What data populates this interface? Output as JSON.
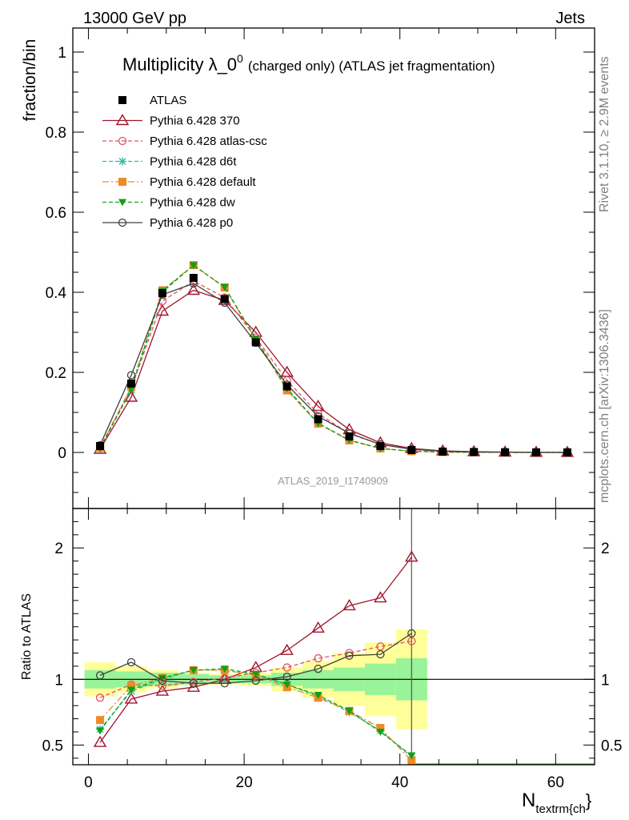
{
  "header": {
    "left": "13000 GeV pp",
    "right": "Jets"
  },
  "side_labels": {
    "rivet": "Rivet 3.1.10, ≥ 2.9M events",
    "mcplots": "mcplots.cern.ch [arXiv:1306.3436]"
  },
  "watermark": "ATLAS_2019_I1740909",
  "chart_data": [
    {
      "type": "line",
      "title": "Multiplicity λ_0",
      "title_sup": "0",
      "title_suffix": "(charged only) (ATLAS jet fragmentation)",
      "ylabel": "fraction/bin",
      "xlabel": "N",
      "xlabel_sub": "textrm{ch",
      "xlabel_suffix": "}",
      "xlim": [
        -2,
        65
      ],
      "ylim": [
        -0.14,
        1.06
      ],
      "yticks": [
        0,
        0.2,
        0.4,
        0.6,
        0.8,
        1
      ],
      "ytick_labels": [
        "0",
        "0.2",
        "0.4",
        "0.6",
        "0.8",
        "1"
      ],
      "x": [
        1.5,
        5.5,
        9.5,
        13.5,
        17.5,
        21.5,
        25.5,
        29.5,
        33.5,
        37.5,
        41.5,
        45.5,
        49.5,
        53.5,
        57.5,
        61.5
      ],
      "legend": "top-left",
      "series": [
        {
          "name": "ATLAS",
          "color": "#000000",
          "marker": "square",
          "values": [
            0.016,
            0.172,
            0.398,
            0.436,
            0.383,
            0.275,
            0.165,
            0.083,
            0.04,
            0.016,
            0.006,
            0.002,
            0.001,
            0.0005,
            0.0002,
            0.0001
          ]
        },
        {
          "name": "Pythia 6.428 370",
          "color": "#a0142e",
          "marker": "triangle-open",
          "values": [
            0.008,
            0.138,
            0.353,
            0.405,
            0.38,
            0.3,
            0.2,
            0.115,
            0.057,
            0.024,
            0.01,
            0.004,
            0.002,
            0.001,
            0.0005,
            0.0002
          ]
        },
        {
          "name": "Pythia 6.428 atlas-csc",
          "color": "#e8505e",
          "marker": "circle-open",
          "values": [
            0.013,
            0.16,
            0.378,
            0.428,
            0.387,
            0.287,
            0.18,
            0.097,
            0.047,
            0.02,
            0.008,
            0.003,
            0.001,
            0.0005,
            0.0002,
            0.0001
          ]
        },
        {
          "name": "Pythia 6.428 d6t",
          "color": "#20c0a0",
          "marker": "star",
          "values": [
            0.01,
            0.156,
            0.4,
            0.468,
            0.412,
            0.282,
            0.157,
            0.072,
            0.03,
            0.01,
            0.003,
            0.001,
            0.0004,
            0.0002,
            0.0001,
            0.0
          ]
        },
        {
          "name": "Pythia 6.428 default",
          "color": "#f08a24",
          "marker": "square",
          "values": [
            0.011,
            0.164,
            0.405,
            0.468,
            0.412,
            0.282,
            0.155,
            0.072,
            0.03,
            0.01,
            0.003,
            0.001,
            0.0004,
            0.0002,
            0.0001,
            0.0
          ]
        },
        {
          "name": "Pythia 6.428 dw",
          "color": "#12a012",
          "marker": "triangle-down",
          "values": [
            0.01,
            0.158,
            0.403,
            0.467,
            0.413,
            0.284,
            0.16,
            0.073,
            0.031,
            0.01,
            0.003,
            0.001,
            0.0004,
            0.0002,
            0.0001,
            0.0
          ]
        },
        {
          "name": "Pythia 6.428 p0",
          "color": "#404040",
          "marker": "circle-open",
          "values": [
            0.018,
            0.193,
            0.394,
            0.422,
            0.374,
            0.274,
            0.169,
            0.09,
            0.048,
            0.02,
            0.008,
            0.003,
            0.001,
            0.0005,
            0.0002,
            0.0001
          ]
        }
      ]
    },
    {
      "type": "line",
      "ylabel": "Ratio to ATLAS",
      "xlim": [
        -2,
        65
      ],
      "ylim": [
        0.35,
        2.3
      ],
      "yticks": [
        0.5,
        1,
        2
      ],
      "ytick_labels": [
        "0.5",
        "1",
        "2"
      ],
      "xticks": [
        0,
        20,
        40,
        60
      ],
      "xtick_labels": [
        "0",
        "20",
        "40",
        "60"
      ],
      "x": [
        1.5,
        5.5,
        9.5,
        13.5,
        17.5,
        21.5,
        25.5,
        29.5,
        33.5,
        37.5,
        41.5
      ],
      "bands": {
        "bin_edges": [
          -0.5,
          3.5,
          7.5,
          11.5,
          15.5,
          19.5,
          23.5,
          27.5,
          31.5,
          35.5,
          39.5,
          43.5
        ],
        "inner_color": "#99f399",
        "outer_color": "#ffff99",
        "inner_lo": [
          0.93,
          0.94,
          0.95,
          0.96,
          0.97,
          0.97,
          0.95,
          0.93,
          0.91,
          0.88,
          0.84
        ],
        "inner_hi": [
          1.07,
          1.06,
          1.05,
          1.04,
          1.03,
          1.03,
          1.05,
          1.07,
          1.09,
          1.12,
          1.16
        ],
        "outer_lo": [
          0.87,
          0.9,
          0.93,
          0.95,
          0.96,
          0.95,
          0.91,
          0.86,
          0.8,
          0.72,
          0.62
        ],
        "outer_hi": [
          1.13,
          1.1,
          1.07,
          1.05,
          1.04,
          1.05,
          1.09,
          1.14,
          1.2,
          1.28,
          1.38
        ]
      },
      "series": [
        {
          "name": "Pythia 6.428 370",
          "color": "#a0142e",
          "values": [
            0.52,
            0.85,
            0.91,
            0.94,
            1.0,
            1.09,
            1.22,
            1.39,
            1.56,
            1.62,
            1.93
          ]
        },
        {
          "name": "Pythia 6.428 atlas-csc",
          "color": "#e8505e",
          "values": [
            0.86,
            0.96,
            0.95,
            0.98,
            1.01,
            1.05,
            1.09,
            1.16,
            1.2,
            1.25,
            1.29
          ]
        },
        {
          "name": "Pythia 6.428 d6t",
          "color": "#20c0a0",
          "values": [
            0.62,
            0.91,
            1.0,
            1.07,
            1.07,
            1.03,
            0.96,
            0.87,
            0.75,
            0.61,
            0.41
          ]
        },
        {
          "name": "Pythia 6.428 default",
          "color": "#f08a24",
          "values": [
            0.69,
            0.95,
            1.01,
            1.07,
            1.07,
            1.03,
            0.94,
            0.86,
            0.76,
            0.63,
            0.38
          ]
        },
        {
          "name": "Pythia 6.428 dw",
          "color": "#12a012",
          "values": [
            0.61,
            0.92,
            1.01,
            1.07,
            1.08,
            1.04,
            0.96,
            0.88,
            0.76,
            0.6,
            0.42
          ]
        },
        {
          "name": "Pythia 6.428 p0",
          "color": "#404040",
          "values": [
            1.03,
            1.13,
            0.99,
            0.97,
            0.97,
            0.99,
            1.02,
            1.08,
            1.18,
            1.19,
            1.35
          ]
        }
      ]
    }
  ]
}
